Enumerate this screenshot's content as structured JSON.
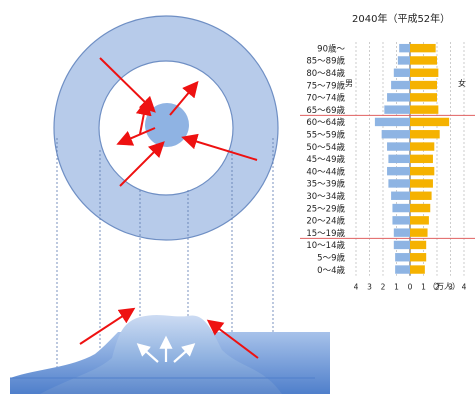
{
  "chart_data": {
    "type": "bar",
    "title": "2040年（平成52年）",
    "left_label": "男",
    "right_label": "女",
    "unit_label": "（万人）",
    "categories": [
      "90歳～",
      "85～89歳",
      "80～84歳",
      "75～79歳",
      "70～74歳",
      "65～69歳",
      "60～64歳",
      "55～59歳",
      "50～54歳",
      "45～49歳",
      "40～44歳",
      "35～39歳",
      "30～34歳",
      "25～29歳",
      "20～24歳",
      "15～19歳",
      "10～14歳",
      "5～9歳",
      "0～4歳"
    ],
    "series": [
      {
        "name": "男",
        "color": "#8eb4e3",
        "values": [
          0.8,
          0.9,
          1.2,
          1.4,
          1.7,
          1.9,
          2.6,
          2.1,
          1.7,
          1.6,
          1.7,
          1.6,
          1.4,
          1.3,
          1.3,
          1.2,
          1.2,
          1.1,
          1.1
        ]
      },
      {
        "name": "女",
        "color": "#f5b200",
        "values": [
          1.9,
          2.0,
          2.1,
          2.0,
          2.0,
          2.1,
          2.9,
          2.2,
          1.8,
          1.7,
          1.8,
          1.7,
          1.6,
          1.5,
          1.4,
          1.3,
          1.2,
          1.2,
          1.1
        ]
      }
    ],
    "xticks": [
      "4",
      "3",
      "2",
      "1",
      "0",
      "1",
      "2",
      "3",
      "4"
    ],
    "xlim": [
      -4,
      4
    ],
    "highlight_age_bands": [
      "65～69歳",
      "15～19歳"
    ],
    "highlight_color": "#e06060"
  },
  "diagram": {
    "ring_fill": "#b7cbea",
    "ring_stroke": "#6f8fc4",
    "core_fill": "#8fb3e3",
    "arrow_color": "#ee1111",
    "mound_fill": "#7fa6dc",
    "mound_light": "#c9daf2",
    "white_arrow_color": "#ffffff"
  }
}
